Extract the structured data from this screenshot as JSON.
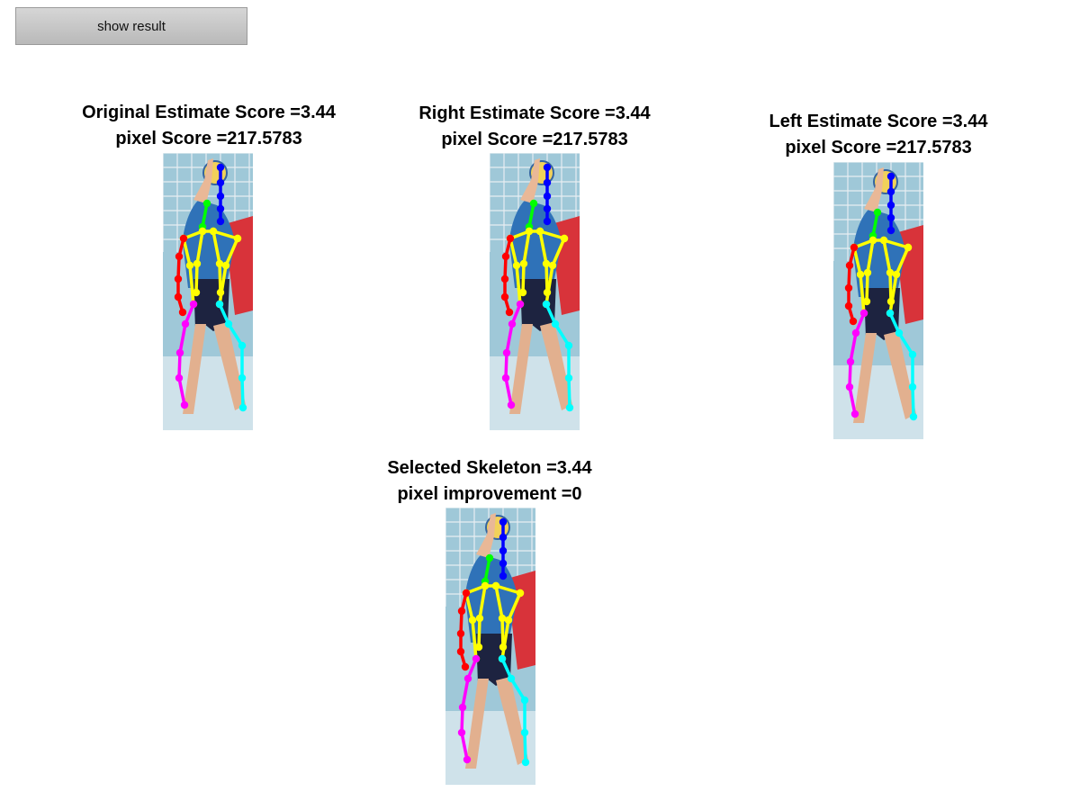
{
  "button": {
    "label": "show result"
  },
  "panels": [
    {
      "title": "Original Estimate Score =3.44",
      "subtitle": "pixel Score =217.5783"
    },
    {
      "title": "Right Estimate Score =3.44",
      "subtitle": "pixel Score =217.5783"
    },
    {
      "title": "Left Estimate Score =3.44",
      "subtitle": "pixel Score =217.5783"
    },
    {
      "title": "Selected Skeleton =3.44",
      "subtitle": "pixel improvement =0"
    }
  ],
  "colors": {
    "head": "#0000ff",
    "neck": "#00ff00",
    "torso": "#ffff00",
    "right_arm": "#ff0000",
    "left_arm": "#00ffff",
    "leg": "#ff00ff",
    "court_back": "#9fc8d8",
    "jersey": "#2f72b8",
    "opponent": "#d8333a",
    "shorts": "#1d2340"
  }
}
